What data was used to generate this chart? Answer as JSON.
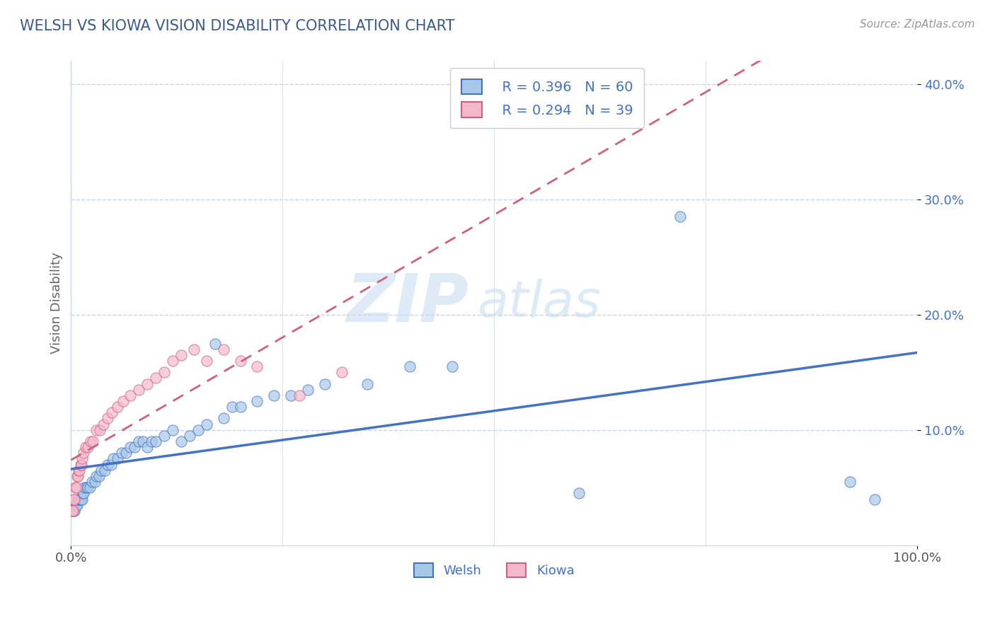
{
  "title": "WELSH VS KIOWA VISION DISABILITY CORRELATION CHART",
  "source": "Source: ZipAtlas.com",
  "ylabel": "Vision Disability",
  "welsh_R": 0.396,
  "welsh_N": 60,
  "kiowa_R": 0.294,
  "kiowa_N": 39,
  "welsh_color": "#a8c8e8",
  "kiowa_color": "#f4b8cc",
  "welsh_line_color": "#4472c4",
  "kiowa_line_color": "#d06080",
  "title_color": "#3a5a8c",
  "legend_text_color": "#4472c4",
  "watermark_zip": "ZIP",
  "watermark_atlas": "atlas",
  "xlim": [
    0.0,
    1.0
  ],
  "ylim": [
    0.0,
    0.42
  ],
  "grid_color": "#c8d4e8",
  "background_color": "#ffffff",
  "welsh_x": [
    0.001,
    0.002,
    0.003,
    0.004,
    0.005,
    0.006,
    0.007,
    0.008,
    0.009,
    0.01,
    0.011,
    0.012,
    0.013,
    0.014,
    0.015,
    0.016,
    0.018,
    0.02,
    0.022,
    0.025,
    0.028,
    0.03,
    0.033,
    0.036,
    0.04,
    0.043,
    0.047,
    0.05,
    0.055,
    0.06,
    0.065,
    0.07,
    0.075,
    0.08,
    0.085,
    0.09,
    0.095,
    0.1,
    0.11,
    0.12,
    0.13,
    0.14,
    0.15,
    0.16,
    0.17,
    0.18,
    0.19,
    0.2,
    0.22,
    0.24,
    0.26,
    0.28,
    0.3,
    0.35,
    0.4,
    0.45,
    0.6,
    0.72,
    0.92,
    0.95
  ],
  "welsh_y": [
    0.03,
    0.03,
    0.03,
    0.03,
    0.035,
    0.035,
    0.035,
    0.04,
    0.04,
    0.04,
    0.04,
    0.04,
    0.04,
    0.045,
    0.045,
    0.05,
    0.05,
    0.05,
    0.05,
    0.055,
    0.055,
    0.06,
    0.06,
    0.065,
    0.065,
    0.07,
    0.07,
    0.075,
    0.075,
    0.08,
    0.08,
    0.085,
    0.085,
    0.09,
    0.09,
    0.085,
    0.09,
    0.09,
    0.095,
    0.1,
    0.09,
    0.095,
    0.1,
    0.105,
    0.175,
    0.11,
    0.12,
    0.12,
    0.125,
    0.13,
    0.13,
    0.135,
    0.14,
    0.14,
    0.155,
    0.155,
    0.045,
    0.285,
    0.055,
    0.04
  ],
  "kiowa_x": [
    0.001,
    0.002,
    0.003,
    0.004,
    0.005,
    0.006,
    0.007,
    0.008,
    0.009,
    0.01,
    0.011,
    0.012,
    0.013,
    0.015,
    0.017,
    0.02,
    0.023,
    0.026,
    0.03,
    0.034,
    0.038,
    0.043,
    0.048,
    0.055,
    0.062,
    0.07,
    0.08,
    0.09,
    0.1,
    0.11,
    0.12,
    0.13,
    0.145,
    0.16,
    0.18,
    0.2,
    0.22,
    0.27,
    0.32
  ],
  "kiowa_y": [
    0.03,
    0.03,
    0.04,
    0.04,
    0.05,
    0.05,
    0.06,
    0.06,
    0.065,
    0.065,
    0.07,
    0.07,
    0.075,
    0.08,
    0.085,
    0.085,
    0.09,
    0.09,
    0.1,
    0.1,
    0.105,
    0.11,
    0.115,
    0.12,
    0.125,
    0.13,
    0.135,
    0.14,
    0.145,
    0.15,
    0.16,
    0.165,
    0.17,
    0.16,
    0.17,
    0.16,
    0.155,
    0.13,
    0.15
  ]
}
